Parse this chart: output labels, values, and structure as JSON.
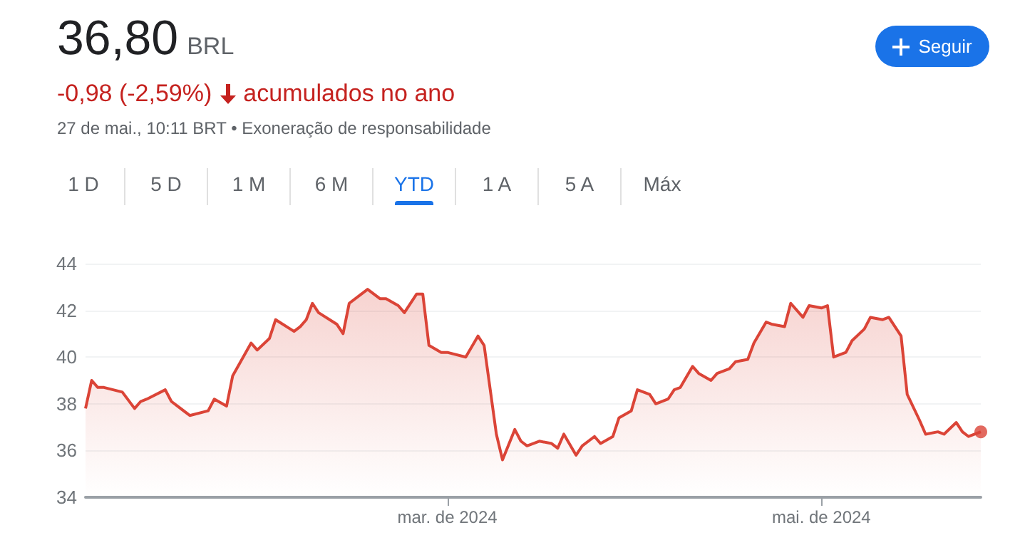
{
  "chart_data": {
    "type": "area",
    "title": "36,80 BRL",
    "subtitle": "-0,98 (-2,59%)",
    "annotations": [
      "acumulados no ano",
      "27 de mai., 10:11 BRT • Exoneração de responsabilidade",
      "Seguir",
      "1 D",
      "5 D",
      "1 M",
      "6 M",
      "YTD",
      "1 A",
      "5 A",
      "Máx"
    ],
    "series": [
      {
        "color": "#db4437",
        "x": [
          "2024-01-02",
          "2024-01-03",
          "2024-01-04",
          "2024-01-05",
          "2024-01-08",
          "2024-01-10",
          "2024-01-11",
          "2024-01-12",
          "2024-01-15",
          "2024-01-16",
          "2024-01-19",
          "2024-01-22",
          "2024-01-23",
          "2024-01-25",
          "2024-01-26",
          "2024-01-29",
          "2024-01-30",
          "2024-02-01",
          "2024-02-02",
          "2024-02-05",
          "2024-02-06",
          "2024-02-07",
          "2024-02-08",
          "2024-02-09",
          "2024-02-12",
          "2024-02-13",
          "2024-02-14",
          "2024-02-16",
          "2024-02-17",
          "2024-02-19",
          "2024-02-20",
          "2024-02-22",
          "2024-02-23",
          "2024-02-25",
          "2024-02-26",
          "2024-02-27",
          "2024-02-29",
          "2024-03-01",
          "2024-03-04",
          "2024-03-06",
          "2024-03-07",
          "2024-03-09",
          "2024-03-10",
          "2024-03-12",
          "2024-03-13",
          "2024-03-14",
          "2024-03-16",
          "2024-03-18",
          "2024-03-19",
          "2024-03-20",
          "2024-03-22",
          "2024-03-23",
          "2024-03-25",
          "2024-03-26",
          "2024-03-28",
          "2024-03-29",
          "2024-03-31",
          "2024-04-01",
          "2024-04-03",
          "2024-04-04",
          "2024-04-06",
          "2024-04-07",
          "2024-04-08",
          "2024-04-10",
          "2024-04-11",
          "2024-04-13",
          "2024-04-14",
          "2024-04-16",
          "2024-04-17",
          "2024-04-19",
          "2024-04-20",
          "2024-04-22",
          "2024-04-23",
          "2024-04-25",
          "2024-04-26",
          "2024-04-28",
          "2024-04-29",
          "2024-05-01",
          "2024-05-02",
          "2024-05-03",
          "2024-05-05",
          "2024-05-06",
          "2024-05-08",
          "2024-05-09",
          "2024-05-11",
          "2024-05-12",
          "2024-05-14",
          "2024-05-15",
          "2024-05-17",
          "2024-05-18",
          "2024-05-20",
          "2024-05-21",
          "2024-05-23",
          "2024-05-24",
          "2024-05-25",
          "2024-05-27"
        ],
        "values": [
          37.8,
          39.0,
          38.7,
          38.7,
          38.5,
          37.8,
          38.1,
          38.2,
          38.6,
          38.1,
          37.5,
          37.7,
          38.2,
          37.9,
          39.2,
          40.6,
          40.3,
          40.8,
          41.6,
          41.1,
          41.3,
          41.6,
          42.3,
          41.9,
          41.4,
          41.0,
          42.3,
          42.7,
          42.9,
          42.5,
          42.5,
          42.2,
          41.9,
          42.7,
          42.7,
          40.5,
          40.2,
          40.2,
          40.0,
          40.9,
          40.5,
          36.7,
          35.6,
          36.9,
          36.4,
          36.2,
          36.4,
          36.3,
          36.1,
          36.7,
          35.8,
          36.2,
          36.6,
          36.3,
          36.6,
          37.4,
          37.7,
          38.6,
          38.4,
          38.0,
          38.2,
          38.6,
          38.7,
          39.6,
          39.3,
          39.0,
          39.3,
          39.5,
          39.8,
          39.9,
          40.6,
          41.5,
          41.4,
          41.3,
          42.3,
          41.7,
          42.2,
          42.1,
          42.2,
          40.0,
          40.2,
          40.7,
          41.2,
          41.7,
          41.6,
          41.7,
          40.9,
          38.4,
          37.3,
          36.7,
          36.8,
          36.7,
          37.2,
          36.8,
          36.6,
          36.8
        ]
      },
      {
        "type": "scatter",
        "color": "#db4437",
        "x": [
          "2024-05-27"
        ],
        "values": [
          36.8
        ]
      }
    ],
    "xlim": [
      "2024-01-02",
      "2024-05-27"
    ],
    "xticks": [
      {
        "value": "2024-03-01",
        "label": "mar. de 2024"
      },
      {
        "value": "2024-05-01",
        "label": "mai. de 2024"
      }
    ],
    "ylim": [
      34,
      44
    ],
    "yticks": [
      34,
      36,
      38,
      40,
      42,
      44
    ],
    "grid": "y"
  }
}
